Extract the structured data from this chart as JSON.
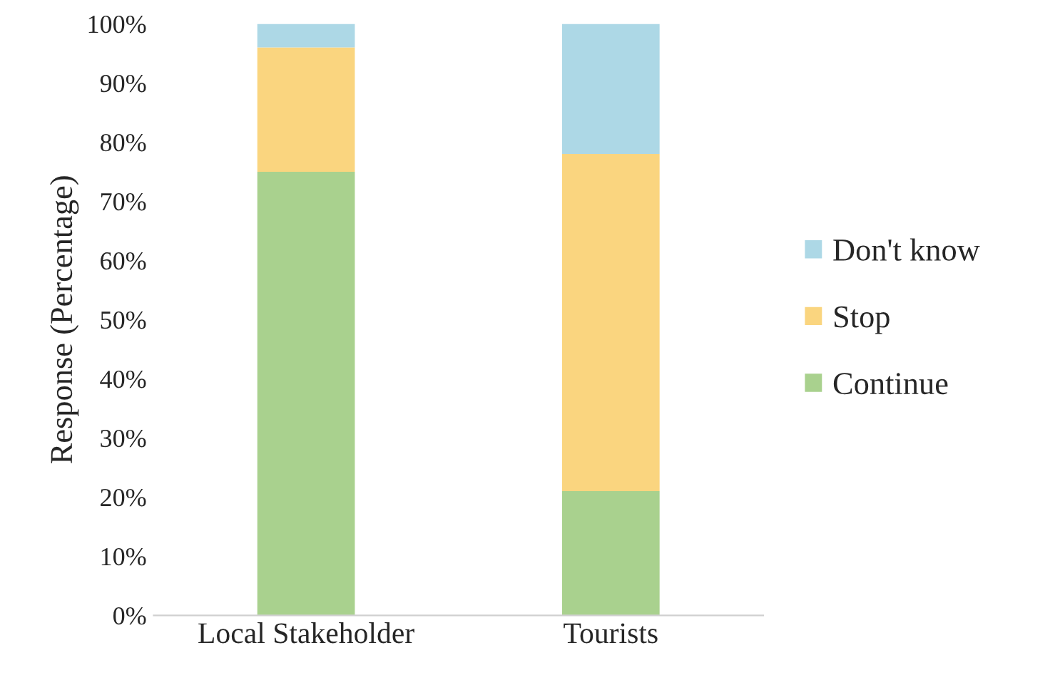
{
  "chart_data": {
    "type": "bar",
    "stacked": true,
    "ylabel": "Response (Percentage)",
    "categories": [
      "Local Stakeholder",
      "Tourists"
    ],
    "series": [
      {
        "name": "Continue",
        "color": "#a9d18e",
        "values": [
          75,
          21
        ]
      },
      {
        "name": "Stop",
        "color": "#fad57f",
        "values": [
          21,
          57
        ]
      },
      {
        "name": "Don't know",
        "color": "#add8e6",
        "values": [
          4,
          22
        ]
      }
    ],
    "ylim": [
      0,
      100
    ],
    "yticks": [
      {
        "value": 0,
        "label": "0%"
      },
      {
        "value": 10,
        "label": "10%"
      },
      {
        "value": 20,
        "label": "20%"
      },
      {
        "value": 30,
        "label": "30%"
      },
      {
        "value": 40,
        "label": "40%"
      },
      {
        "value": 50,
        "label": "50%"
      },
      {
        "value": 60,
        "label": "60%"
      },
      {
        "value": 70,
        "label": "70%"
      },
      {
        "value": 80,
        "label": "80%"
      },
      {
        "value": 90,
        "label": "90%"
      },
      {
        "value": 100,
        "label": "100%"
      }
    ],
    "grid": false,
    "legend": "right"
  }
}
